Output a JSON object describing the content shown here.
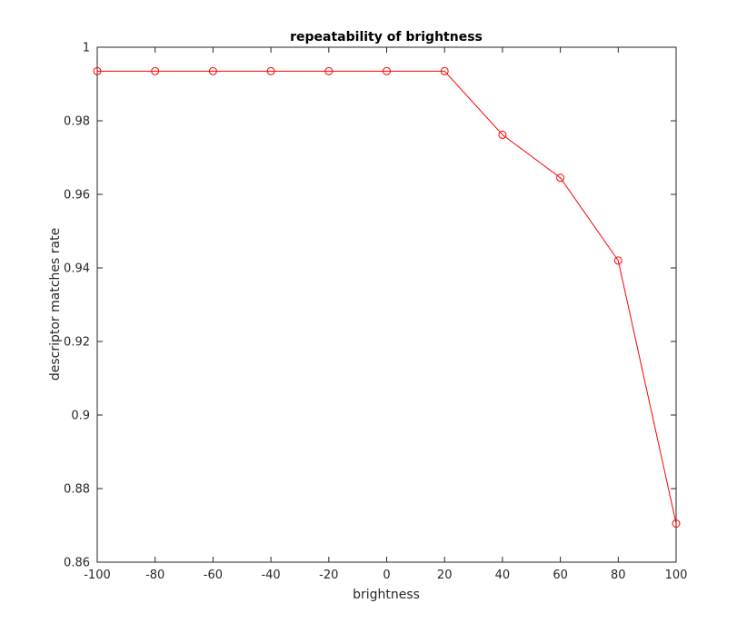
{
  "chart_data": {
    "type": "line",
    "title": "repeatability of brightness",
    "xlabel": "brightness",
    "ylabel": "descriptor matches rate",
    "xlim": [
      -100,
      100
    ],
    "ylim": [
      0.86,
      1
    ],
    "x_ticks": [
      "-100",
      "-80",
      "-60",
      "-40",
      "-20",
      "0",
      "20",
      "40",
      "60",
      "80",
      "100"
    ],
    "y_ticks": [
      "0.86",
      "0.88",
      "0.9",
      "0.92",
      "0.94",
      "0.96",
      "0.98",
      "1"
    ],
    "grid": false,
    "series": [
      {
        "x": [
          -100,
          -80,
          -60,
          -40,
          -20,
          0,
          20,
          40,
          60,
          80,
          100
        ],
        "y": [
          0.9935,
          0.9935,
          0.9935,
          0.9935,
          0.9935,
          0.9935,
          0.9935,
          0.9762,
          0.9645,
          0.942,
          0.8705
        ],
        "color": "#ff0000",
        "marker": "circle"
      }
    ]
  }
}
